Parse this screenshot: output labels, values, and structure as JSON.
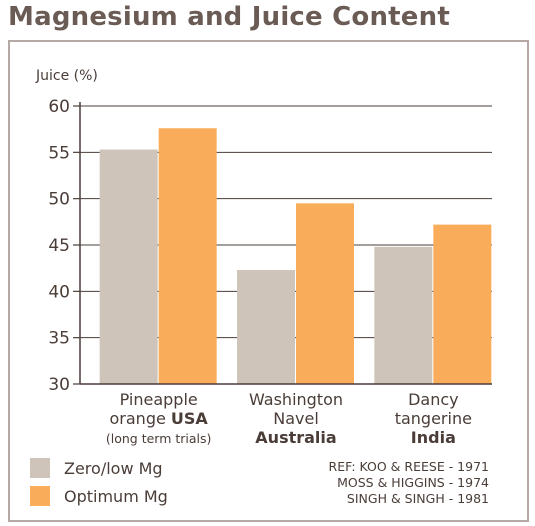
{
  "title": "Magnesium and Juice Content",
  "chart_data": {
    "type": "bar",
    "title": "Magnesium and Juice Content",
    "ylabel": "Juice (%)",
    "xlabel": "",
    "ylim": [
      30,
      60
    ],
    "yticks": [
      30,
      35,
      40,
      45,
      50,
      55,
      60
    ],
    "grid": true,
    "legend_position": "bottom-left",
    "categories": [
      {
        "lines": [
          {
            "text": "Pineapple",
            "bold": false
          },
          {
            "text": "orange ",
            "bold": false,
            "bold_tail": "USA"
          },
          {
            "text": "(long term trials)",
            "bold": false,
            "small": true
          }
        ]
      },
      {
        "lines": [
          {
            "text": "Washington",
            "bold": false
          },
          {
            "text": "Navel",
            "bold": false
          },
          {
            "text": "Australia",
            "bold": true
          }
        ]
      },
      {
        "lines": [
          {
            "text": "Dancy",
            "bold": false
          },
          {
            "text": "tangerine",
            "bold": false
          },
          {
            "text": "India",
            "bold": true
          }
        ]
      }
    ],
    "series": [
      {
        "name": "Zero/low Mg",
        "color": "#cfc4b9",
        "values": [
          55.3,
          42.3,
          44.8
        ]
      },
      {
        "name": "Optimum Mg",
        "color": "#f9ad5a",
        "values": [
          57.6,
          49.5,
          47.2
        ]
      }
    ]
  },
  "references": [
    "REF: KOO & REESE - 1971",
    "MOSS & HIGGINS - 1974",
    "SINGH & SINGH - 1981"
  ],
  "colors": {
    "axis": "#4a3d38",
    "grid": "#4a3d38",
    "frame": "#b4a9a4"
  }
}
